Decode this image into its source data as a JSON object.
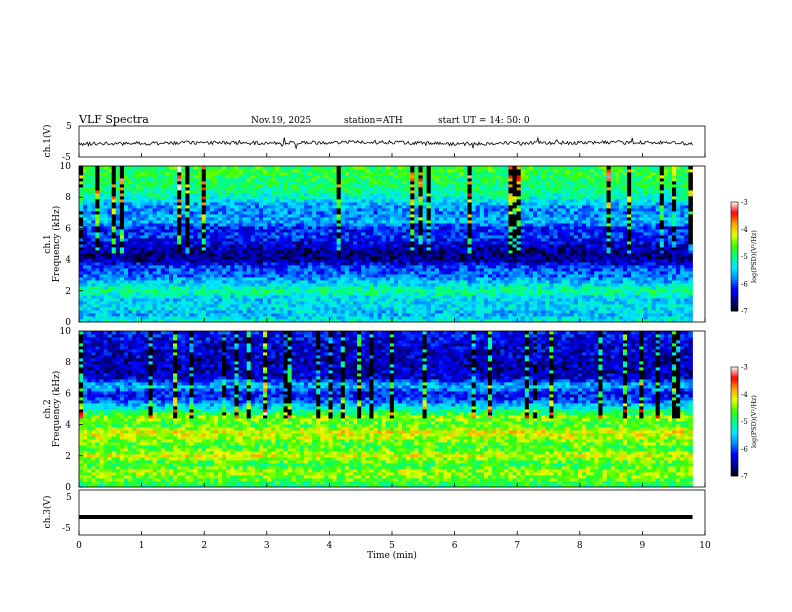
{
  "header": {
    "title": "VLF  Spectra",
    "date": "Nov.19, 2025",
    "station": "station=ATH",
    "start_ut": "start  UT  =   14: 50: 0"
  },
  "chart_data": [
    {
      "type": "line",
      "panel": "ch.1",
      "ylabel": "ch.1(V)",
      "yticks": [
        "5",
        "-5"
      ],
      "ylim": [
        -5,
        5
      ],
      "xlim": [
        0,
        10
      ],
      "data_end_min": 9.8,
      "line_color": "#000000",
      "values_V_by_minute": {
        "x": [
          0,
          1,
          2,
          3,
          4,
          5,
          6,
          7,
          8,
          9,
          9.8
        ],
        "y": [
          -0.8,
          -0.6,
          -0.4,
          -0.5,
          -0.3,
          -0.2,
          -0.8,
          -0.5,
          -0.4,
          -0.3,
          -0.6
        ]
      }
    },
    {
      "type": "heatmap",
      "panel": "ch.1 spectrogram",
      "ylabel_channel": "ch.1",
      "ylabel": "Frequency  (kHz)",
      "yticks": [
        "0",
        "2",
        "4",
        "6",
        "8",
        "10"
      ],
      "ylim": [
        0,
        10
      ],
      "xlim": [
        0,
        10
      ],
      "data_end_min": 9.8,
      "colorbar": {
        "label": "log(PSD)(V²/Hz)",
        "ticks": [
          "-3",
          "-4",
          "-5",
          "-6",
          "-7"
        ],
        "range": [
          -7,
          -3
        ]
      },
      "band_profile_logPSD": {
        "freq_kHz": [
          0,
          0.5,
          1,
          1.5,
          2,
          2.5,
          3,
          3.5,
          4,
          4.5,
          5,
          5.5,
          6,
          6.5,
          7,
          7.5,
          8,
          8.5,
          9,
          9.5,
          10
        ],
        "log_psd": [
          -5.2,
          -5.6,
          -5.4,
          -5.5,
          -5.0,
          -5.5,
          -5.9,
          -6.0,
          -6.6,
          -6.6,
          -6.4,
          -6.1,
          -6.2,
          -5.6,
          -5.8,
          -5.7,
          -5.2,
          -5.0,
          -4.9,
          -4.8,
          -4.8
        ]
      }
    },
    {
      "type": "heatmap",
      "panel": "ch.2 spectrogram",
      "ylabel_channel": "ch.2",
      "ylabel": "Frequency  (kHz)",
      "yticks": [
        "0",
        "2",
        "4",
        "6",
        "8",
        "10"
      ],
      "ylim": [
        0,
        10
      ],
      "xlim": [
        0,
        10
      ],
      "data_end_min": 9.8,
      "colorbar": {
        "label": "log(PSD)(V²/Hz)",
        "ticks": [
          "-3",
          "-4",
          "-5",
          "-6",
          "-7"
        ],
        "range": [
          -7,
          -3
        ]
      },
      "band_profile_logPSD": {
        "freq_kHz": [
          0,
          0.5,
          1,
          1.5,
          2,
          2.5,
          3,
          3.5,
          4,
          4.5,
          5,
          5.5,
          6,
          6.5,
          7,
          7.5,
          8,
          8.5,
          9,
          9.5,
          10
        ],
        "log_psd": [
          -5.0,
          -4.6,
          -4.4,
          -4.8,
          -4.2,
          -4.7,
          -4.5,
          -4.1,
          -4.7,
          -4.4,
          -5.2,
          -5.9,
          -6.3,
          -5.5,
          -6.4,
          -6.5,
          -6.5,
          -6.4,
          -6.4,
          -6.3,
          -6.2
        ]
      }
    },
    {
      "type": "line",
      "panel": "ch.3",
      "ylabel": "ch.3(V)",
      "yticks": [
        "5",
        "-5"
      ],
      "ylim": [
        -5,
        5
      ],
      "xlim": [
        0,
        10
      ],
      "data_end_min": 9.8,
      "line_color": "#000000",
      "values_V_by_minute": {
        "x": [
          0,
          9.8
        ],
        "y": [
          -1.0,
          -1.0
        ]
      }
    }
  ],
  "xaxis": {
    "label": "Time  (min)",
    "ticks": [
      "0",
      "1",
      "2",
      "3",
      "4",
      "5",
      "6",
      "7",
      "8",
      "9",
      "10"
    ],
    "range": [
      0,
      10
    ]
  },
  "colors": {
    "colormap": [
      "#000000",
      "#00009a",
      "#0000ff",
      "#0090ff",
      "#00e8ff",
      "#00ff80",
      "#40ff00",
      "#e8ff00",
      "#ffa000",
      "#ff0000",
      "#ffffff"
    ],
    "trace": "#000000"
  }
}
